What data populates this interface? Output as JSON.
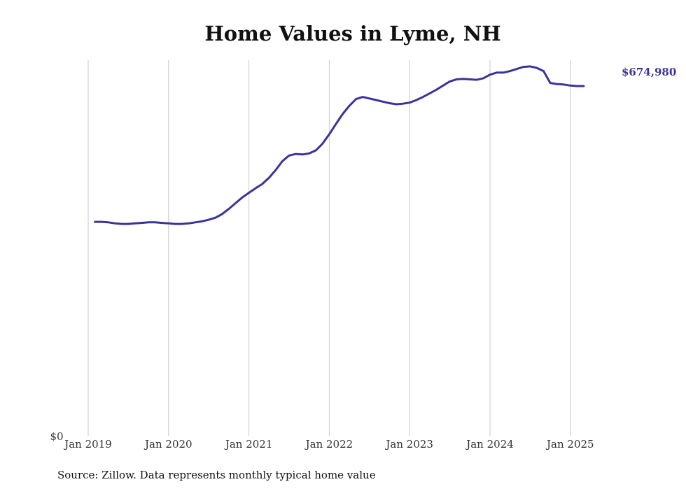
{
  "chart_data": {
    "type": "line",
    "title": "Home Values in Lyme, NH",
    "xlabel": "",
    "ylabel": "",
    "x_ticks": [
      "Jan 2019",
      "Jan 2020",
      "Jan 2021",
      "Jan 2022",
      "Jan 2023",
      "Jan 2024",
      "Jan 2025"
    ],
    "y_ticks": [
      "$0"
    ],
    "ylim": [
      0,
      725000
    ],
    "xlim": [
      "2019-01",
      "2025-12"
    ],
    "grid": "vertical",
    "color": "#3a3499",
    "end_label": "$674,980",
    "source": "Source: Zillow. Data represents monthly typical home value",
    "series": [
      {
        "points": [
          [
            "2019-02",
            413000
          ],
          [
            "2019-03",
            413000
          ],
          [
            "2019-04",
            412000
          ],
          [
            "2019-05",
            410000
          ],
          [
            "2019-06",
            409000
          ],
          [
            "2019-07",
            409000
          ],
          [
            "2019-08",
            410000
          ],
          [
            "2019-09",
            411000
          ],
          [
            "2019-10",
            412000
          ],
          [
            "2019-11",
            412000
          ],
          [
            "2019-12",
            411000
          ],
          [
            "2020-01",
            410000
          ],
          [
            "2020-02",
            409000
          ],
          [
            "2020-03",
            409000
          ],
          [
            "2020-04",
            410000
          ],
          [
            "2020-05",
            412000
          ],
          [
            "2020-06",
            414000
          ],
          [
            "2020-07",
            417000
          ],
          [
            "2020-08",
            421000
          ],
          [
            "2020-09",
            428000
          ],
          [
            "2020-10",
            438000
          ],
          [
            "2020-11",
            449000
          ],
          [
            "2020-12",
            460000
          ],
          [
            "2021-01",
            469000
          ],
          [
            "2021-02",
            478000
          ],
          [
            "2021-03",
            486000
          ],
          [
            "2021-04",
            498000
          ],
          [
            "2021-05",
            513000
          ],
          [
            "2021-06",
            530000
          ],
          [
            "2021-07",
            541000
          ],
          [
            "2021-08",
            544000
          ],
          [
            "2021-09",
            543000
          ],
          [
            "2021-10",
            545000
          ],
          [
            "2021-11",
            551000
          ],
          [
            "2021-12",
            564000
          ],
          [
            "2022-01",
            582000
          ],
          [
            "2022-02",
            602000
          ],
          [
            "2022-03",
            621000
          ],
          [
            "2022-04",
            637000
          ],
          [
            "2022-05",
            650000
          ],
          [
            "2022-06",
            654000
          ],
          [
            "2022-07",
            651000
          ],
          [
            "2022-08",
            648000
          ],
          [
            "2022-09",
            645000
          ],
          [
            "2022-10",
            642000
          ],
          [
            "2022-11",
            640000
          ],
          [
            "2022-12",
            641000
          ],
          [
            "2023-01",
            643000
          ],
          [
            "2023-02",
            648000
          ],
          [
            "2023-03",
            654000
          ],
          [
            "2023-04",
            661000
          ],
          [
            "2023-05",
            668000
          ],
          [
            "2023-06",
            676000
          ],
          [
            "2023-07",
            684000
          ],
          [
            "2023-08",
            688000
          ],
          [
            "2023-09",
            689000
          ],
          [
            "2023-10",
            688000
          ],
          [
            "2023-11",
            687000
          ],
          [
            "2023-12",
            690000
          ],
          [
            "2024-01",
            697000
          ],
          [
            "2024-02",
            701000
          ],
          [
            "2024-03",
            701000
          ],
          [
            "2024-04",
            704000
          ],
          [
            "2024-05",
            708000
          ],
          [
            "2024-06",
            712000
          ],
          [
            "2024-07",
            713000
          ],
          [
            "2024-08",
            710000
          ],
          [
            "2024-09",
            704000
          ],
          [
            "2024-10",
            681000
          ],
          [
            "2024-11",
            679000
          ],
          [
            "2024-12",
            678000
          ],
          [
            "2025-01",
            676000
          ],
          [
            "2025-02",
            675000
          ],
          [
            "2025-03",
            674980
          ]
        ]
      }
    ]
  }
}
